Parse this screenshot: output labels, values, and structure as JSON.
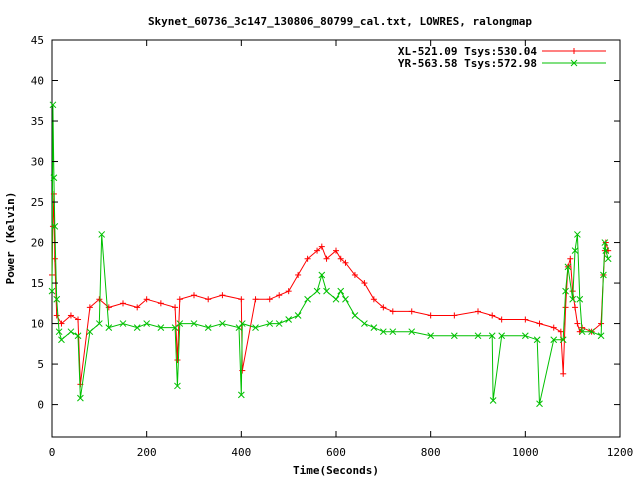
{
  "chart_data": {
    "type": "line",
    "title": "Skynet_60736_3c147_130806_80799_cal.txt, LOWRES, ralongmap",
    "xlabel": "Time(Seconds)",
    "ylabel": "Power (Kelvin)",
    "xlim": [
      0,
      1200
    ],
    "ylim": [
      -4,
      45
    ],
    "x_ticks": [
      "0",
      "200",
      "400",
      "600",
      "800",
      "1000",
      "1200"
    ],
    "y_ticks": [
      "0",
      "5",
      "10",
      "15",
      "20",
      "25",
      "30",
      "35",
      "40",
      "45"
    ],
    "grid": false,
    "legend_position": "top-right",
    "series": [
      {
        "name": "XL-521.09 Tsys:530.04",
        "color": "#ff0000",
        "marker": "plus",
        "x": [
          0,
          2,
          4,
          6,
          10,
          20,
          40,
          55,
          60,
          80,
          100,
          120,
          150,
          180,
          200,
          230,
          260,
          265,
          270,
          300,
          330,
          360,
          400,
          402,
          430,
          460,
          480,
          500,
          520,
          540,
          560,
          570,
          580,
          600,
          610,
          620,
          640,
          660,
          680,
          700,
          720,
          760,
          800,
          850,
          900,
          930,
          950,
          1000,
          1030,
          1060,
          1075,
          1080,
          1085,
          1090,
          1095,
          1100,
          1105,
          1110,
          1115,
          1120,
          1140,
          1160,
          1165,
          1168,
          1170,
          1175
        ],
        "y": [
          16,
          22,
          26,
          18,
          11,
          10,
          11,
          10.5,
          2.5,
          12,
          13,
          12,
          12.5,
          12,
          13,
          12.5,
          12,
          5.5,
          13,
          13.5,
          13,
          13.5,
          13,
          4.2,
          13,
          13,
          13.5,
          14,
          16,
          18,
          19,
          19.5,
          18,
          19,
          18,
          17.5,
          16,
          15,
          13,
          12,
          11.5,
          11.5,
          11,
          11,
          11.5,
          11,
          10.5,
          10.5,
          10,
          9.5,
          9,
          3.8,
          12,
          17,
          18,
          14,
          12,
          10,
          9,
          9.5,
          9,
          10,
          16,
          19,
          20,
          19
        ]
      },
      {
        "name": "YR-563.58 Tsys:572.98",
        "color": "#00c000",
        "marker": "x",
        "x": [
          0,
          2,
          4,
          6,
          10,
          15,
          20,
          40,
          55,
          60,
          80,
          100,
          105,
          120,
          150,
          180,
          200,
          230,
          260,
          265,
          270,
          300,
          330,
          360,
          395,
          400,
          402,
          430,
          460,
          480,
          500,
          520,
          540,
          560,
          570,
          580,
          600,
          610,
          620,
          640,
          660,
          680,
          700,
          720,
          760,
          800,
          850,
          900,
          930,
          932,
          950,
          1000,
          1025,
          1030,
          1060,
          1080,
          1085,
          1090,
          1100,
          1105,
          1110,
          1115,
          1120,
          1140,
          1160,
          1165,
          1168,
          1170,
          1175
        ],
        "y": [
          14,
          37,
          28,
          22,
          13,
          9,
          8,
          9,
          8.5,
          0.8,
          9,
          10,
          21,
          9.5,
          10,
          9.5,
          10,
          9.5,
          9.5,
          2.3,
          10,
          10,
          9.5,
          10,
          9.5,
          1.2,
          10,
          9.5,
          10,
          10,
          10.5,
          11,
          13,
          14,
          16,
          14,
          13,
          14,
          13,
          11,
          10,
          9.5,
          9,
          9,
          9,
          8.5,
          8.5,
          8.5,
          8.5,
          0.5,
          8.5,
          8.5,
          8,
          0.1,
          8,
          8,
          14,
          17,
          13,
          19,
          21,
          13,
          9,
          9,
          8.5,
          16,
          20,
          19,
          18
        ]
      }
    ]
  }
}
